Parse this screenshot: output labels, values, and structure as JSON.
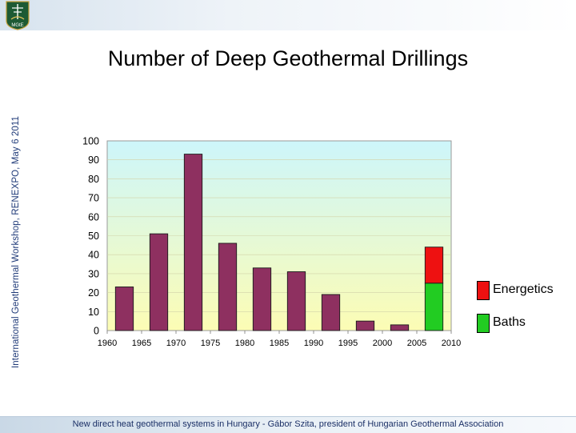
{
  "slide": {
    "title": "Number of Deep Geothermal Drillings",
    "side_caption": "International Geothermal Workshop, RENEXPO, May 6 2011",
    "footer": "New direct heat geothermal systems in Hungary - Gábor Szita, president of Hungarian Geothermal Association",
    "logo_text": "MGtE"
  },
  "chart_data": {
    "type": "bar",
    "title": "Number of Deep Geothermal Drillings",
    "xlabel": "",
    "ylabel": "",
    "ylim": [
      0,
      100
    ],
    "yticks": [
      "0",
      "10",
      "20",
      "30",
      "40",
      "50",
      "60",
      "70",
      "80",
      "90",
      "100"
    ],
    "xlim": [
      1960,
      2010
    ],
    "xticks": [
      "1960",
      "1965",
      "1970",
      "1975",
      "1980",
      "1985",
      "1990",
      "1995",
      "2000",
      "2005",
      "2010"
    ],
    "stacked": true,
    "bar_centers": [
      1962.5,
      1967.5,
      1972.5,
      1977.5,
      1982.5,
      1987.5,
      1992.5,
      1997.5,
      2002.5,
      2007.5
    ],
    "series": [
      {
        "name": "Baths",
        "color": "#22cc22",
        "values": [
          23,
          51,
          93,
          46,
          33,
          31,
          19,
          5,
          3,
          25
        ]
      },
      {
        "name": "Energetics",
        "color": "#ee1111",
        "values": [
          0,
          0,
          0,
          0,
          0,
          0,
          0,
          0,
          0,
          19
        ]
      }
    ],
    "bar_colors": [
      "#8e3060",
      "#8e3060",
      "#8e3060",
      "#8e3060",
      "#8e3060",
      "#8e3060",
      "#8e3060",
      "#8e3060",
      "#8e3060",
      "series"
    ],
    "legend": {
      "placement": "right",
      "entries": [
        {
          "label": "Energetics",
          "color": "#ee1111"
        },
        {
          "label": "Baths",
          "color": "#22cc22"
        }
      ]
    },
    "background_gradient": [
      "#cdf6fb",
      "#fcfcb4"
    ],
    "grid": "horizontal"
  }
}
